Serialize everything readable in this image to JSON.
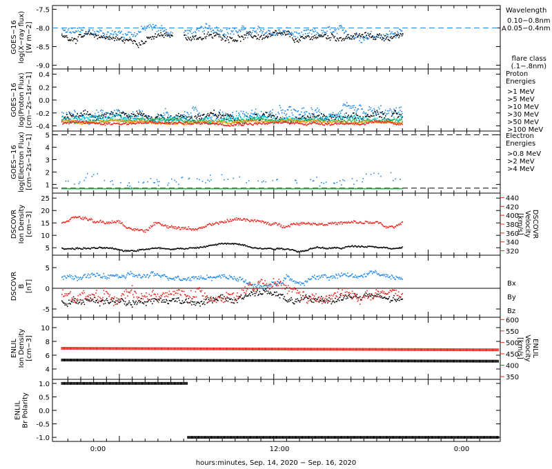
{
  "colors": {
    "black": "#000000",
    "blue": "#1e88e5",
    "cyan": "#00c8e0",
    "green": "#22b14c",
    "orange": "#ff9900",
    "red": "#e8251f",
    "magenta": "#ff00ff",
    "flare": "#1e88e5"
  },
  "xaxis": {
    "label": "hours:minutes, Sep. 14, 2020 − Sep. 16, 2020",
    "ticks": [
      "0:00",
      "12:00",
      "0:00"
    ]
  },
  "chart_data": [
    {
      "type": "scatter",
      "id": "xray",
      "ylabel": [
        "GOES−16",
        "log(X−ray flux)",
        "[W m−2]"
      ],
      "ylim": [
        -9.1,
        -7.4
      ],
      "yticks": [
        "-7.5",
        "-8.0",
        "-8.5",
        "-9.0"
      ],
      "legend_title": "Wavelength",
      "legend": [
        {
          "label": "0.10−0.8nm",
          "color": "#1e88e5"
        },
        {
          "label": "0.05−0.4nm",
          "color": "#000000"
        }
      ],
      "flare_label": "A",
      "flare_level": -8.0,
      "flare_class_title": [
        "flare class",
        "(.1−.8nm)"
      ],
      "series": [
        {
          "color": "#1e88e5",
          "segments": [
            [
              -4.5,
              4.1
            ],
            [
              5.0,
              22.0
            ]
          ],
          "base": -8.12,
          "noise": 0.16,
          "bumps": [
            [
              1,
              4,
              0.12
            ],
            [
              6,
              10,
              0.12
            ],
            [
              13,
              16,
              -0.1
            ],
            [
              16,
              20,
              -0.05
            ]
          ]
        },
        {
          "color": "#000000",
          "segments": [
            [
              -4.5,
              4.1
            ],
            [
              5.0,
              22.0
            ]
          ],
          "base": -8.22,
          "noise": 0.12,
          "bumps": [
            [
              -1,
              3,
              -0.12
            ],
            [
              13,
              15,
              -0.12
            ]
          ]
        }
      ]
    },
    {
      "type": "scatter",
      "id": "proton",
      "ylabel": [
        "GOES−16",
        "log(Proton Flux)",
        "[cm−2s−1sr−1]"
      ],
      "ylim": [
        -0.48,
        0.48
      ],
      "yticks": [
        "0.4",
        "0.2",
        "0.0",
        "-0.2",
        "-0.4"
      ],
      "legend_title": [
        "Proton",
        "Energies"
      ],
      "legend": [
        {
          "label": ">1 MeV",
          "color": "#1e88e5"
        },
        {
          "label": ">5 MeV",
          "color": "#000000"
        },
        {
          "label": ">10 MeV",
          "color": "#00c8e0"
        },
        {
          "label": ">30 MeV",
          "color": "#22b14c"
        },
        {
          "label": ">50 MeV",
          "color": "#ff9900"
        },
        {
          "label": ">100 MeV",
          "color": "#e8251f"
        }
      ],
      "series": [
        {
          "color": "#1e88e5",
          "segments": [
            [
              -4.5,
              22.0
            ]
          ],
          "base": -0.22,
          "noise": 0.12
        },
        {
          "color": "#000000",
          "segments": [
            [
              -4.5,
              22.0
            ]
          ],
          "base": -0.25,
          "noise": 0.08
        },
        {
          "color": "#00c8e0",
          "segments": [
            [
              -4.5,
              22.0
            ]
          ],
          "base": -0.28,
          "noise": 0.06
        },
        {
          "color": "#22b14c",
          "segments": [
            [
              -4.5,
              22.0
            ]
          ],
          "base": -0.31,
          "noise": 0.04
        },
        {
          "color": "#ff9900",
          "segments": [
            [
              -4.5,
              22.0
            ]
          ],
          "base": -0.33,
          "noise": 0.03
        },
        {
          "color": "#e8251f",
          "segments": [
            [
              -4.5,
              22.0
            ]
          ],
          "base": -0.35,
          "noise": 0.03
        }
      ]
    },
    {
      "type": "scatter",
      "id": "electron",
      "ylabel": [
        "GOES−16",
        "log(Electron Flux)",
        "[cm−2s−1sr−1]"
      ],
      "ylim": [
        0.3,
        5.3
      ],
      "yticks": [
        "5",
        "4",
        "3",
        "2",
        "1"
      ],
      "legend_title": [
        "Electron",
        "Energies"
      ],
      "legend": [
        {
          "label": ">0.8 MeV",
          "color": "#000000"
        },
        {
          "label": ">2 MeV",
          "color": "#1e88e5"
        },
        {
          "label": ">4 MeV",
          "color": "#ff00ff"
        }
      ],
      "dashed_levels": [
        5.0,
        0.7
      ],
      "series": [
        {
          "color": "#1e88e5",
          "segments": [
            [
              -4.5,
              22.0
            ]
          ],
          "base": 1.3,
          "noise": 0.6,
          "sparse": 0.25
        },
        {
          "color": "#22b14c",
          "segments": [
            [
              -4.5,
              22.0
            ]
          ],
          "base": 0.7,
          "noise": 0.0
        }
      ]
    },
    {
      "type": "line",
      "id": "dscovr_ion",
      "ylabel": [
        "DSCOVR",
        "Ion Density",
        "[cm−3]"
      ],
      "ylim": [
        2,
        27
      ],
      "yticks": [
        "25",
        "20",
        "15",
        "10",
        "5"
      ],
      "y2label": [
        "DSCOVR",
        "Velocity",
        "[km/s]"
      ],
      "y2lim": [
        310,
        450
      ],
      "y2ticks": [
        "440",
        "420",
        "400",
        "380",
        "360",
        "340",
        "320"
      ],
      "y2color": "#e8251f",
      "series": [
        {
          "color": "#e8251f",
          "axis": 2,
          "segments": [
            [
              -4.5,
              22.0
            ]
          ],
          "base": 385,
          "noise": 5,
          "bumps": [
            [
              -4.5,
              -2,
              12
            ],
            [
              0,
              3,
              -18
            ],
            [
              3,
              8,
              -14
            ],
            [
              8,
              11,
              8
            ],
            [
              11,
              14,
              -6
            ],
            [
              14,
              20,
              -2
            ],
            [
              20,
              22,
              -12
            ]
          ]
        },
        {
          "color": "#000000",
          "axis": 1,
          "segments": [
            [
              -4.5,
              22.0
            ]
          ],
          "base": 5.0,
          "noise": 0.5,
          "bumps": [
            [
              -1,
              2,
              -1.0
            ],
            [
              6,
              11,
              1.8
            ],
            [
              13,
              15,
              -1.0
            ],
            [
              17,
              21,
              1.0
            ]
          ]
        }
      ]
    },
    {
      "type": "line",
      "id": "dscovr_b",
      "ylabel": [
        "DSCOVR",
        "B",
        "[nT]"
      ],
      "ylim": [
        -7,
        8
      ],
      "yticks": [
        "5",
        "0",
        "-5"
      ],
      "zero_line": true,
      "legend": [
        {
          "label": "Bx",
          "color": "#000000"
        },
        {
          "label": "By",
          "color": "#1e88e5"
        },
        {
          "label": "Bz",
          "color": "#e8251f"
        }
      ],
      "series": [
        {
          "color": "#1e88e5",
          "axis": 1,
          "segments": [
            [
              -4.5,
              22.0
            ]
          ],
          "base": 3.0,
          "noise": 0.9,
          "bumps": [
            [
              9,
              13,
              -2.5
            ],
            [
              13,
              15,
              -2.0
            ],
            [
              19,
              21,
              0.8
            ]
          ]
        },
        {
          "color": "#000000",
          "axis": 1,
          "segments": [
            [
              -4.5,
              22.0
            ]
          ],
          "base": -2.8,
          "noise": 1.2,
          "bumps": [
            [
              9,
              13,
              2.0
            ],
            [
              16,
              21,
              1.0
            ]
          ]
        },
        {
          "color": "#e8251f",
          "axis": 1,
          "segments": [
            [
              -4.5,
              22.0
            ]
          ],
          "base": -1.5,
          "noise": 1.8,
          "bumps": [
            [
              9,
              14,
              2.0
            ],
            [
              14,
              17,
              -1.5
            ]
          ]
        }
      ]
    },
    {
      "type": "line",
      "id": "enlil_ion",
      "ylabel": [
        "ENLIL",
        "Ion Density",
        "[cm−3]"
      ],
      "ylim": [
        2.5,
        11.5
      ],
      "yticks": [
        "10",
        "8",
        "6",
        "4"
      ],
      "y2label": [
        "ENLIL",
        "Velocity",
        "[km/s]"
      ],
      "y2lim": [
        338,
        610
      ],
      "y2ticks": [
        "600",
        "550",
        "500",
        "450",
        "400",
        "350"
      ],
      "y2color": "#e8251f",
      "series": [
        {
          "color": "#e8251f",
          "axis": 2,
          "segments": [
            [
              -4.5,
              29.5
            ]
          ],
          "base": 474,
          "noise": 0,
          "slope": -0.2
        },
        {
          "color": "#000000",
          "axis": 1,
          "segments": [
            [
              -4.5,
              29.5
            ]
          ],
          "base": 5.3,
          "noise": 0,
          "slope": -0.005
        }
      ]
    },
    {
      "type": "line",
      "id": "enlil_pol",
      "ylabel": [
        "ENLIL",
        "Br Polarity"
      ],
      "ylim": [
        -1.15,
        1.15
      ],
      "yticks": [
        "1.0",
        "0.5",
        "0.0",
        "-0.5",
        "-1.0"
      ],
      "series": [
        {
          "color": "#000000",
          "axis": 1,
          "segments": [
            [
              -4.5,
              5.3
            ]
          ],
          "base": 1.0,
          "noise": 0
        },
        {
          "color": "#000000",
          "axis": 1,
          "segments": [
            [
              5.3,
              29.5
            ]
          ],
          "base": -1.0,
          "noise": 0
        }
      ]
    }
  ]
}
